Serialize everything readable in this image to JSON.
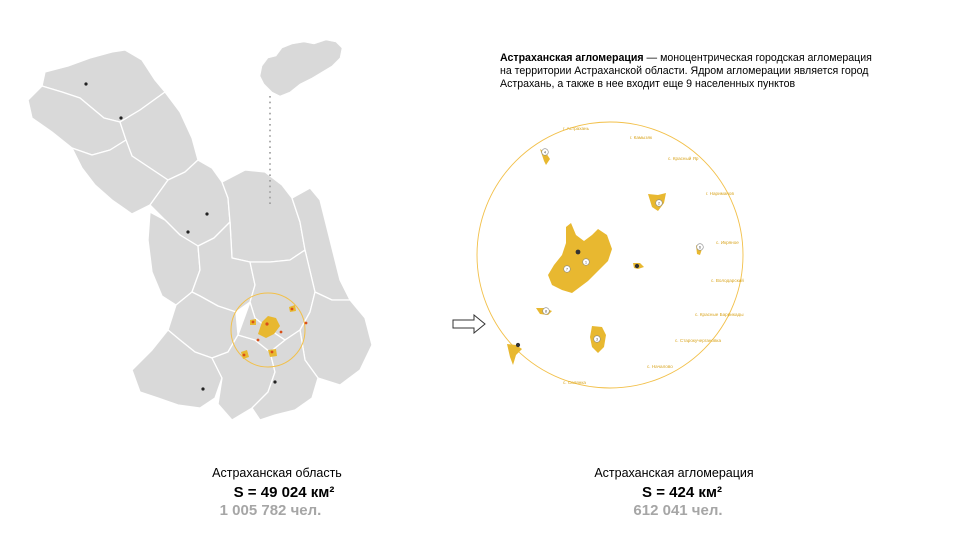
{
  "description": {
    "title": "Астраханская агломерация",
    "text": " — моноцентрическая городская агломерация на территории Астраханской области. Ядром агломерации является город Астрахань, а также в нее входит еще 9 населенных пунктов"
  },
  "region": {
    "name": "Астраханская область",
    "area": "S = 49 024 км²",
    "population": "1 005 782 чел."
  },
  "agglomeration": {
    "name": "Астраханская агломерация",
    "area": "S = 424 км²",
    "population": "612 041 чел.",
    "places": [
      "г. Астрахань",
      "г. Камызяк",
      "с. Красный Яр",
      "г. Нариманов",
      "с. Икряное",
      "с. Володарский",
      "с. Красные Баррикады",
      "с. Старокучергановка",
      "с. Началово",
      "с. Солянка"
    ]
  },
  "colors": {
    "region_fill": "#d9d9d9",
    "region_border": "#ffffff",
    "agglo_fill": "#e8b830",
    "circle": "#f2c04a",
    "label": "#d9a520",
    "grey_text": "#a6a6a6"
  }
}
